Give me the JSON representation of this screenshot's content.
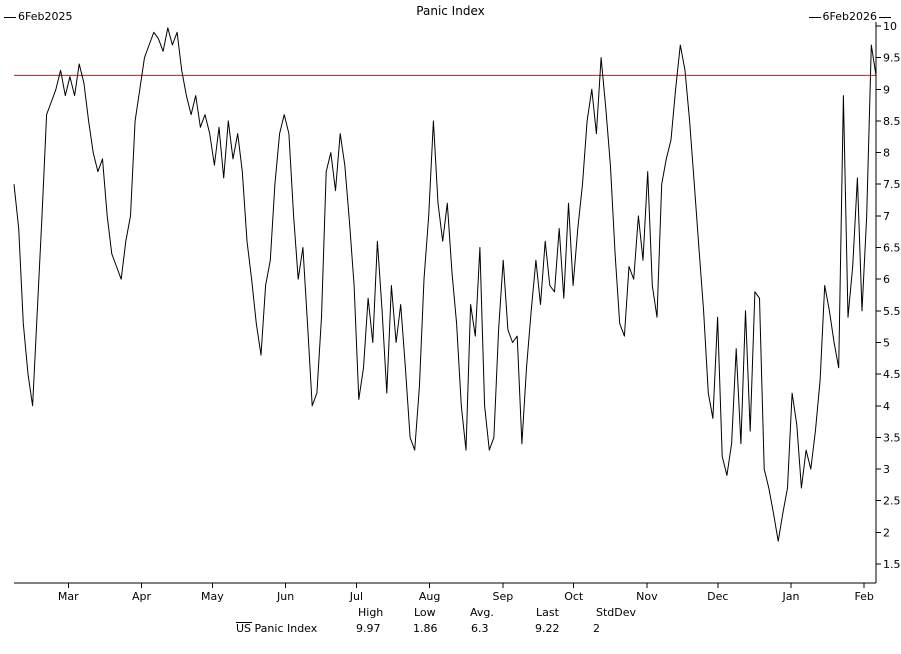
{
  "title": "Panic Index",
  "header": {
    "start_date": "6Feb2025",
    "end_date": "6Feb2026"
  },
  "colors": {
    "line": "#000000",
    "threshold": "#b22222",
    "background": "#ffffff",
    "text": "#000000"
  },
  "legend": {
    "label": "US Panic Index"
  },
  "stats": {
    "headers": {
      "high": "High",
      "low": "Low",
      "avg": "Avg.",
      "last": "Last",
      "stddev": "StdDev"
    },
    "values": {
      "high": "9.97",
      "low": "1.86",
      "avg": "6.3",
      "last": "9.22",
      "stddev": "2"
    }
  },
  "chart_data": {
    "type": "line",
    "title": "Panic Index",
    "x_range_label": [
      "6Feb2025",
      "6Feb2026"
    ],
    "days_span": 365,
    "x_ticks": [
      {
        "label": "Mar",
        "day": 23
      },
      {
        "label": "Apr",
        "day": 54
      },
      {
        "label": "May",
        "day": 84
      },
      {
        "label": "Jun",
        "day": 115
      },
      {
        "label": "Jul",
        "day": 145
      },
      {
        "label": "Aug",
        "day": 176
      },
      {
        "label": "Sep",
        "day": 207
      },
      {
        "label": "Oct",
        "day": 237
      },
      {
        "label": "Nov",
        "day": 268
      },
      {
        "label": "Dec",
        "day": 298
      },
      {
        "label": "Jan",
        "day": 329
      },
      {
        "label": "Feb",
        "day": 360
      }
    ],
    "ylim": [
      1.5,
      10
    ],
    "y_tick_step": 0.5,
    "grid": false,
    "threshold_line": 9.22,
    "legend_position": "bottom",
    "series": [
      {
        "name": "US Panic Index",
        "color": "#000000",
        "high": 9.97,
        "low": 1.86,
        "avg": 6.3,
        "last": 9.22,
        "stddev": 2,
        "values": [
          7.5,
          6.8,
          5.3,
          4.5,
          4.0,
          5.5,
          7.0,
          8.6,
          8.8,
          9.0,
          9.3,
          8.9,
          9.2,
          8.9,
          9.4,
          9.1,
          8.5,
          8.0,
          7.7,
          7.9,
          7.0,
          6.4,
          6.2,
          6.0,
          6.6,
          7.0,
          8.5,
          9.0,
          9.5,
          9.7,
          9.9,
          9.8,
          9.6,
          9.97,
          9.7,
          9.9,
          9.3,
          8.9,
          8.6,
          8.9,
          8.4,
          8.6,
          8.3,
          7.8,
          8.4,
          7.6,
          8.5,
          7.9,
          8.3,
          7.7,
          6.6,
          6.0,
          5.3,
          4.8,
          5.9,
          6.3,
          7.5,
          8.3,
          8.6,
          8.3,
          7.0,
          6.0,
          6.5,
          5.3,
          4.0,
          4.2,
          5.4,
          7.7,
          8.0,
          7.4,
          8.3,
          7.8,
          6.9,
          5.9,
          4.1,
          4.6,
          5.7,
          5.0,
          6.6,
          5.5,
          4.2,
          5.9,
          5.0,
          5.6,
          4.6,
          3.5,
          3.3,
          4.3,
          6.0,
          7.0,
          8.5,
          7.2,
          6.6,
          7.2,
          6.1,
          5.3,
          4.0,
          3.3,
          5.6,
          5.1,
          6.5,
          4.0,
          3.3,
          3.5,
          5.2,
          6.3,
          5.2,
          5.0,
          5.1,
          3.4,
          4.6,
          5.5,
          6.3,
          5.6,
          6.6,
          5.9,
          5.8,
          6.8,
          5.7,
          7.2,
          5.9,
          6.8,
          7.5,
          8.5,
          9.0,
          8.3,
          9.5,
          8.7,
          7.8,
          6.4,
          5.3,
          5.1,
          6.2,
          6.0,
          7.0,
          6.3,
          7.7,
          5.9,
          5.4,
          7.5,
          7.9,
          8.2,
          9.0,
          9.7,
          9.3,
          8.5,
          7.5,
          6.5,
          5.5,
          4.2,
          3.8,
          5.4,
          3.2,
          2.9,
          3.4,
          4.9,
          3.4,
          5.5,
          3.6,
          5.8,
          5.7,
          3.0,
          2.7,
          2.3,
          1.86,
          2.3,
          2.7,
          4.2,
          3.7,
          2.7,
          3.3,
          3.0,
          3.6,
          4.4,
          5.9,
          5.5,
          5.0,
          4.6,
          8.9,
          5.4,
          6.2,
          7.6,
          5.5,
          7.0,
          9.7,
          9.22
        ]
      }
    ]
  }
}
